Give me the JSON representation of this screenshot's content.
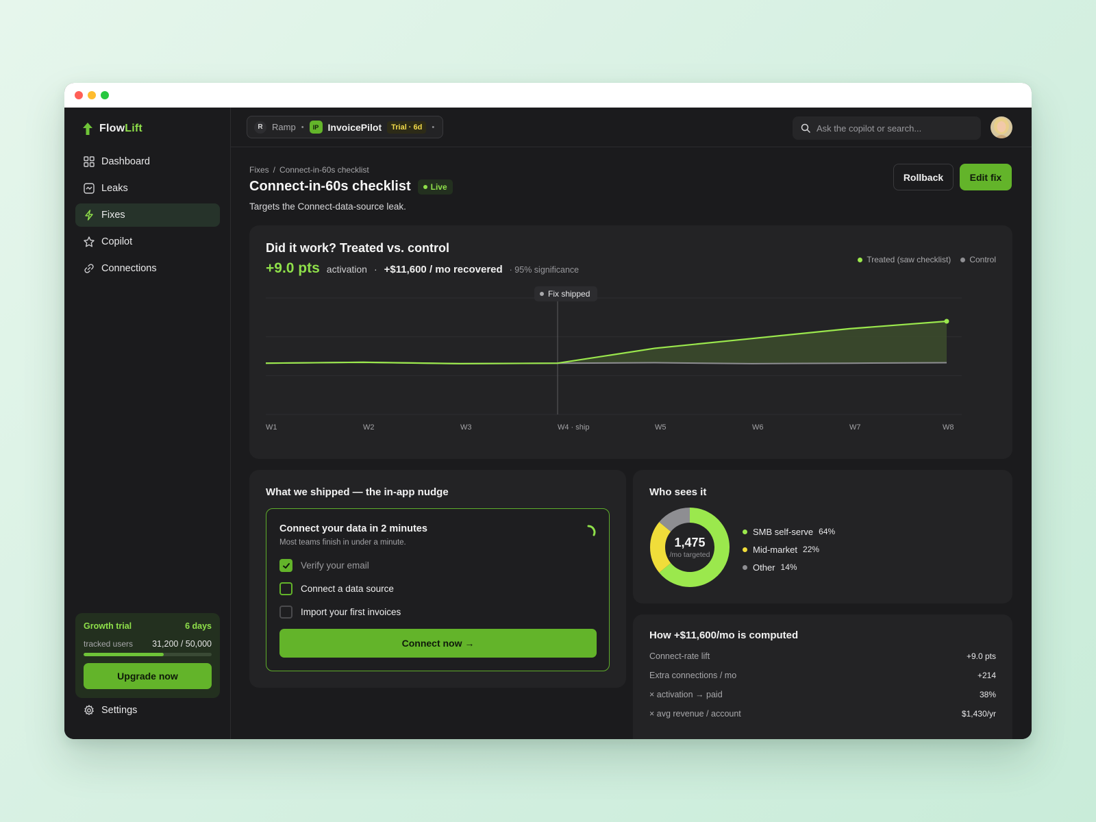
{
  "brand": {
    "name_a": "Flow",
    "name_b": "Lift"
  },
  "sidebar": {
    "items": [
      {
        "label": "Dashboard",
        "icon": "grid-icon"
      },
      {
        "label": "Leaks",
        "icon": "leak-icon"
      },
      {
        "label": "Fixes",
        "icon": "bolt-icon",
        "active": true
      },
      {
        "label": "Copilot",
        "icon": "sparkle-icon"
      },
      {
        "label": "Connections",
        "icon": "link-icon"
      }
    ],
    "trial": {
      "title": "Growth trial",
      "days": "6 days",
      "usage_label": "tracked users",
      "usage_value": "31,200 / 50,000",
      "usage_fraction": 0.624,
      "upgrade_label": "Upgrade now"
    },
    "settings_label": "Settings"
  },
  "topbar": {
    "workspace_initial": "R",
    "workspace": "Ramp",
    "sep": "•",
    "app_initials": "IP",
    "app_name": "InvoicePilot",
    "trial_badge": "Trial · 6d",
    "caret": "•",
    "search_placeholder": "Ask the copilot or search..."
  },
  "page": {
    "breadcrumb": [
      "Fixes",
      "/",
      "Connect-in-60s checklist"
    ],
    "title": "Connect-in-60s checklist",
    "status": "Live",
    "subtitle": "Targets the Connect-data-source leak.",
    "rollback_label": "Rollback",
    "edit_label": "Edit fix"
  },
  "experiment": {
    "title": "Did it work? Treated vs. control",
    "lift": "+9.0 pts",
    "lift_metric": "activation",
    "sep": "·",
    "recovered": "+$11,600 / mo recovered",
    "significance": "· 95% significance",
    "legend_treated": "Treated (saw checklist)",
    "legend_control": "Control",
    "annotation": "Fix shipped"
  },
  "chart_data": {
    "type": "area",
    "categories": [
      "W1",
      "W2",
      "W3",
      "W4 · ship",
      "W5",
      "W6",
      "W7",
      "W8"
    ],
    "series": [
      {
        "name": "Treated (saw checklist)",
        "values": [
          31,
          31.2,
          30.9,
          31,
          34.2,
          36.3,
          38.4,
          40
        ]
      },
      {
        "name": "Control",
        "values": [
          31,
          31.2,
          30.9,
          31,
          31.1,
          30.9,
          31,
          31.1
        ]
      }
    ],
    "annotation": {
      "label": "Fix shipped",
      "category": "W4 · ship"
    },
    "ylim": [
      20,
      45
    ],
    "grid": true,
    "legend": "top-right",
    "colors": {
      "treated": "#9be84d",
      "control": "#8e8e92"
    }
  },
  "nudge": {
    "section_title": "What we shipped — the in-app nudge",
    "title": "Connect your data in 2 minutes",
    "subtitle": "Most teams finish in under a minute.",
    "steps": [
      {
        "label": "Verify your email",
        "state": "done"
      },
      {
        "label": "Connect a data source",
        "state": "active"
      },
      {
        "label": "Import your first invoices",
        "state": "todo"
      }
    ],
    "cta": "Connect now →"
  },
  "audience": {
    "title": "Who sees it",
    "total": "1,475",
    "total_label": "/mo targeted",
    "segments": [
      {
        "name": "SMB self-serve",
        "pct": "64%",
        "value": 64,
        "color": "#9be84d"
      },
      {
        "name": "Mid-market",
        "pct": "22%",
        "value": 22,
        "color": "#f0dd3a"
      },
      {
        "name": "Other",
        "pct": "14%",
        "value": 14,
        "color": "#8e8e92"
      }
    ]
  },
  "computation": {
    "title": "How +$11,600/mo is computed",
    "rows": [
      {
        "label": "Connect-rate lift",
        "value": "+9.0 pts"
      },
      {
        "label": "Extra connections / mo",
        "value": "+214"
      },
      {
        "label": "× activation → paid",
        "value": "38%"
      },
      {
        "label": "× avg revenue / account",
        "value": "$1,430/yr"
      }
    ]
  }
}
